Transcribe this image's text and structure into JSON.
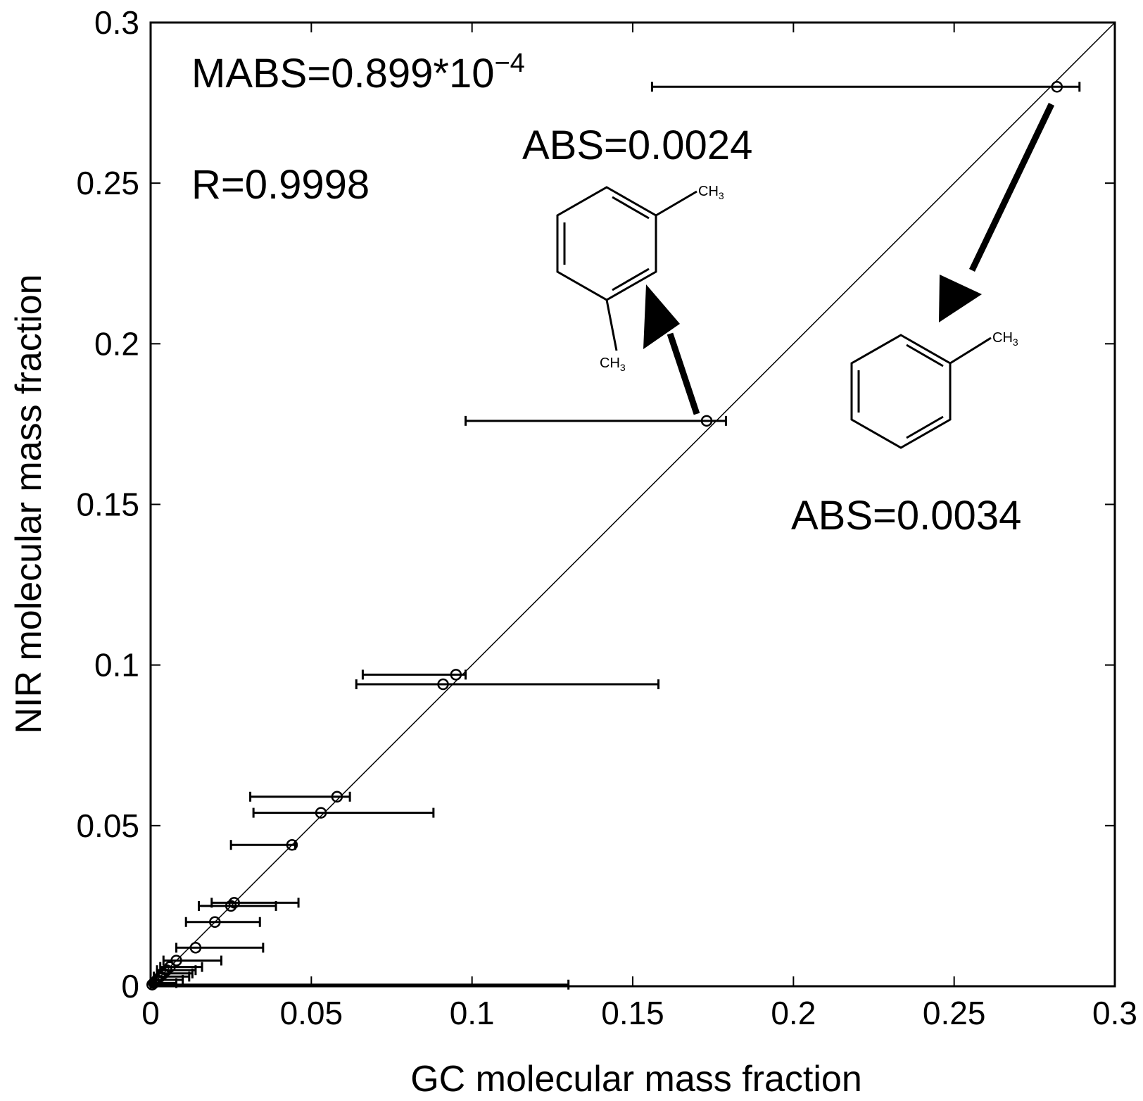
{
  "chart_data": {
    "type": "scatter",
    "xlabel": "GC molecular mass fraction",
    "ylabel": "NIR molecular mass fraction",
    "xlim": [
      0,
      0.3
    ],
    "ylim": [
      0,
      0.3
    ],
    "xticks": [
      "0",
      "0.05",
      "0.1",
      "0.15",
      "0.2",
      "0.25",
      "0.3"
    ],
    "yticks": [
      "0",
      "0.05",
      "0.1",
      "0.15",
      "0.2",
      "0.25",
      "0.3"
    ],
    "grid": false,
    "reference_line": {
      "x": [
        0,
        0.3
      ],
      "y": [
        0,
        0.3
      ]
    },
    "points": [
      {
        "x": 0.282,
        "y": 0.28,
        "xerr_low": 0.156,
        "xerr_high": 0.289
      },
      {
        "x": 0.173,
        "y": 0.176,
        "xerr_low": 0.098,
        "xerr_high": 0.179
      },
      {
        "x": 0.095,
        "y": 0.097,
        "xerr_low": 0.066,
        "xerr_high": 0.098
      },
      {
        "x": 0.091,
        "y": 0.094,
        "xerr_low": 0.064,
        "xerr_high": 0.158
      },
      {
        "x": 0.058,
        "y": 0.059,
        "xerr_low": 0.031,
        "xerr_high": 0.062
      },
      {
        "x": 0.053,
        "y": 0.054,
        "xerr_low": 0.032,
        "xerr_high": 0.088
      },
      {
        "x": 0.044,
        "y": 0.044,
        "xerr_low": 0.025,
        "xerr_high": 0.045
      },
      {
        "x": 0.026,
        "y": 0.026,
        "xerr_low": 0.019,
        "xerr_high": 0.046
      },
      {
        "x": 0.025,
        "y": 0.025,
        "xerr_low": 0.015,
        "xerr_high": 0.039
      },
      {
        "x": 0.02,
        "y": 0.02,
        "xerr_low": 0.011,
        "xerr_high": 0.034
      },
      {
        "x": 0.014,
        "y": 0.012,
        "xerr_low": 0.008,
        "xerr_high": 0.035
      },
      {
        "x": 0.008,
        "y": 0.008,
        "xerr_low": 0.004,
        "xerr_high": 0.022
      },
      {
        "x": 0.006,
        "y": 0.006,
        "xerr_low": 0.003,
        "xerr_high": 0.016
      },
      {
        "x": 0.005,
        "y": 0.005,
        "xerr_low": 0.002,
        "xerr_high": 0.014
      },
      {
        "x": 0.004,
        "y": 0.004,
        "xerr_low": 0.002,
        "xerr_high": 0.013
      },
      {
        "x": 0.003,
        "y": 0.003,
        "xerr_low": 0.001,
        "xerr_high": 0.012
      },
      {
        "x": 0.002,
        "y": 0.002,
        "xerr_low": 0.001,
        "xerr_high": 0.01
      },
      {
        "x": 0.001,
        "y": 0.001,
        "xerr_low": 0.0,
        "xerr_high": 0.008
      },
      {
        "x": 0.0005,
        "y": 0.0005,
        "xerr_low": 0.0,
        "xerr_high": 0.13
      }
    ],
    "annotations": {
      "mabs": "MABS=0.899*10",
      "mabs_exponent": "−4",
      "r": "R=0.9998",
      "abs_xylene": "ABS=0.0024",
      "abs_toluene": "ABS=0.0034",
      "ch3": "CH",
      "ch3_sub": "3"
    }
  }
}
